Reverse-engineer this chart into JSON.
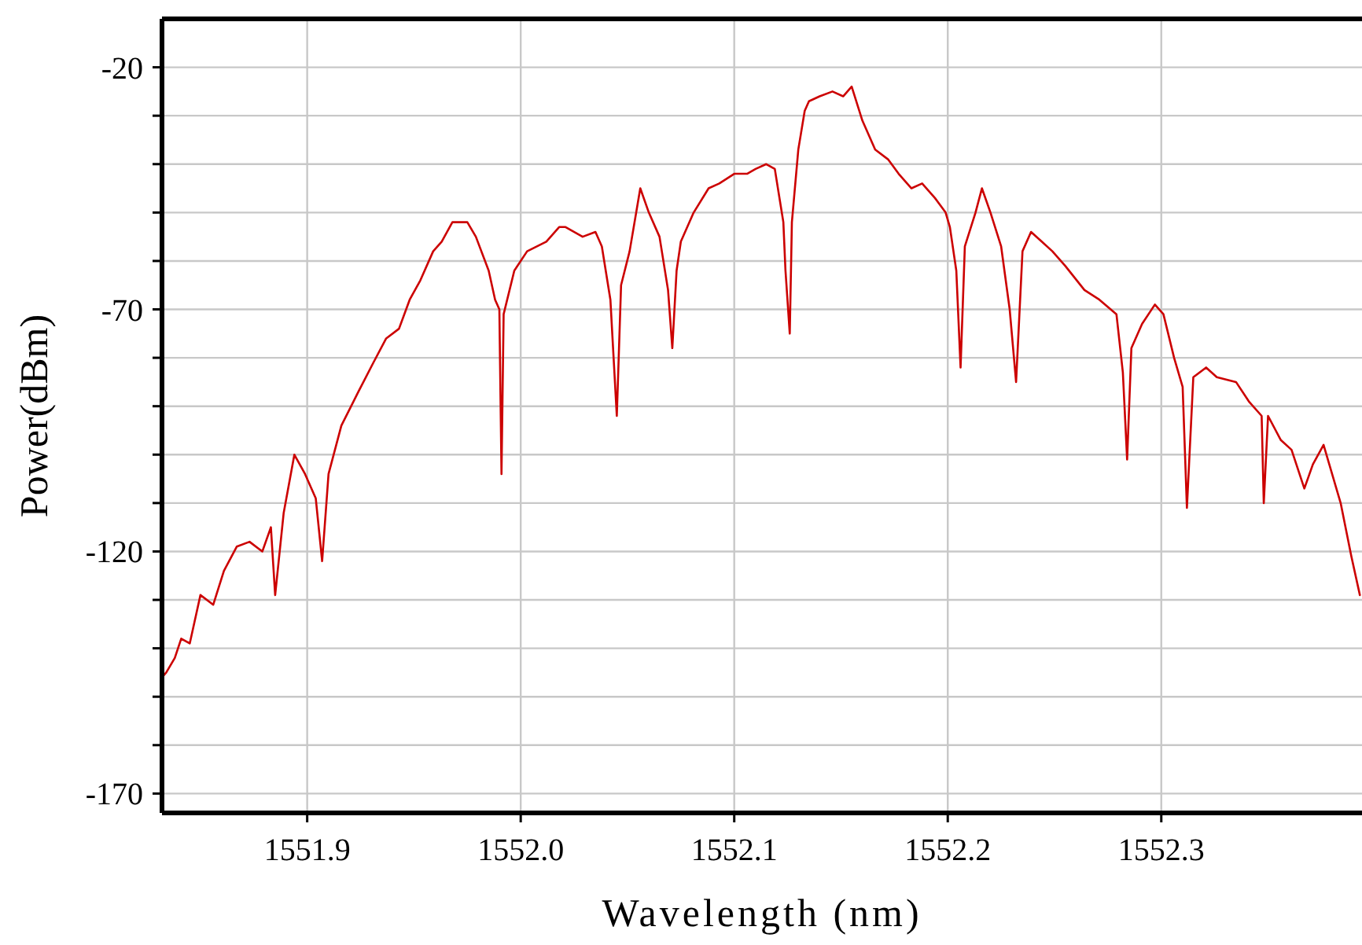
{
  "chart_data": {
    "type": "line",
    "xlabel": "Wavelength (nm)",
    "ylabel": "Power(dBm)",
    "xlim": [
      1551.832,
      1552.394
    ],
    "ylim": [
      -174,
      -10
    ],
    "xticks": [
      1551.9,
      {
        "value": 1552,
        "label": "1552.0"
      },
      1552.1,
      1552.2,
      1552.3
    ],
    "yticks": [
      -170,
      {
        "value": -160,
        "label": null
      },
      {
        "value": -150,
        "label": null
      },
      {
        "value": -140,
        "label": null
      },
      {
        "value": -130,
        "label": null
      },
      -120,
      {
        "value": -110,
        "label": null
      },
      {
        "value": -100,
        "label": null
      },
      {
        "value": -90,
        "label": null
      },
      {
        "value": -80,
        "label": null
      },
      -70,
      {
        "value": -60,
        "label": null
      },
      {
        "value": -50,
        "label": null
      },
      {
        "value": -40,
        "label": null
      },
      {
        "value": -30,
        "label": null
      },
      -20
    ],
    "grid": true,
    "marker": "none",
    "line_style": "solid",
    "series": [
      {
        "color": "#cc0000",
        "x": [
          1551.832,
          1551.834,
          1551.838,
          1551.841,
          1551.845,
          1551.85,
          1551.856,
          1551.861,
          1551.867,
          1551.873,
          1551.879,
          1551.883,
          1551.885,
          1551.889,
          1551.894,
          1551.899,
          1551.904,
          1551.907,
          1551.91,
          1551.916,
          1551.924,
          1551.931,
          1551.937,
          1551.943,
          1551.948,
          1551.953,
          1551.959,
          1551.963,
          1551.968,
          1551.975,
          1551.979,
          1551.985,
          1551.988,
          1551.99,
          1551.991,
          1551.992,
          1551.997,
          1552.003,
          1552.012,
          1552.018,
          1552.021,
          1552.029,
          1552.035,
          1552.038,
          1552.042,
          1552.045,
          1552.047,
          1552.051,
          1552.056,
          1552.06,
          1552.065,
          1552.069,
          1552.071,
          1552.073,
          1552.075,
          1552.081,
          1552.088,
          1552.093,
          1552.1,
          1552.106,
          1552.11,
          1552.115,
          1552.119,
          1552.123,
          1552.124,
          1552.126,
          1552.127,
          1552.13,
          1552.133,
          1552.135,
          1552.14,
          1552.146,
          1552.151,
          1552.155,
          1552.16,
          1552.163,
          1552.166,
          1552.172,
          1552.177,
          1552.183,
          1552.188,
          1552.194,
          1552.199,
          1552.201,
          1552.204,
          1552.206,
          1552.208,
          1552.213,
          1552.216,
          1552.22,
          1552.225,
          1552.229,
          1552.232,
          1552.235,
          1552.239,
          1552.244,
          1552.249,
          1552.255,
          1552.264,
          1552.271,
          1552.279,
          1552.282,
          1552.284,
          1552.286,
          1552.291,
          1552.297,
          1552.301,
          1552.306,
          1552.31,
          1552.312,
          1552.315,
          1552.321,
          1552.326,
          1552.335,
          1552.341,
          1552.347,
          1552.348,
          1552.35,
          1552.356,
          1552.361,
          1552.367,
          1552.371,
          1552.376,
          1552.38,
          1552.384,
          1552.389,
          1552.393
        ],
        "values": [
          -146,
          -145,
          -142,
          -138,
          -139,
          -129,
          -131,
          -124,
          -119,
          -118,
          -120,
          -115,
          -129,
          -112,
          -100,
          -104,
          -109,
          -122,
          -104,
          -94,
          -87,
          -81,
          -76,
          -74,
          -68,
          -64,
          -58,
          -56,
          -52,
          -52,
          -55,
          -62,
          -68,
          -70,
          -104,
          -71,
          -62,
          -58,
          -56,
          -53,
          -53,
          -55,
          -54,
          -57,
          -68,
          -92,
          -65,
          -58,
          -45,
          -50,
          -55,
          -66,
          -78,
          -62,
          -56,
          -50,
          -45,
          -44,
          -42,
          -42,
          -41,
          -40,
          -41,
          -52,
          -62,
          -75,
          -52,
          -37,
          -29,
          -27,
          -26,
          -25,
          -26,
          -24,
          -31,
          -34,
          -37,
          -39,
          -42,
          -45,
          -44,
          -47,
          -50,
          -53,
          -62,
          -82,
          -57,
          -50,
          -45,
          -50,
          -57,
          -70,
          -85,
          -58,
          -54,
          -56,
          -58,
          -61,
          -66,
          -68,
          -71,
          -83,
          -101,
          -78,
          -73,
          -69,
          -71,
          -80,
          -86,
          -111,
          -84,
          -82,
          -84,
          -85,
          -89,
          -92,
          -110,
          -92,
          -97,
          -99,
          -107,
          -102,
          -98,
          -104,
          -110,
          -121,
          -129
        ]
      }
    ]
  }
}
